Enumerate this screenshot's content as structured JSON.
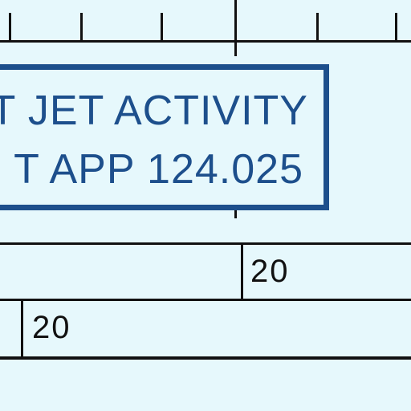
{
  "notice": {
    "line1": "T JET ACTIVITY",
    "line2": "T APP 124.025"
  },
  "strips": {
    "upper_value": "20",
    "lower_value": "20"
  },
  "colors": {
    "background": "#e6f8fc",
    "notice_blue": "#1d4f8c",
    "ink": "#111111"
  }
}
